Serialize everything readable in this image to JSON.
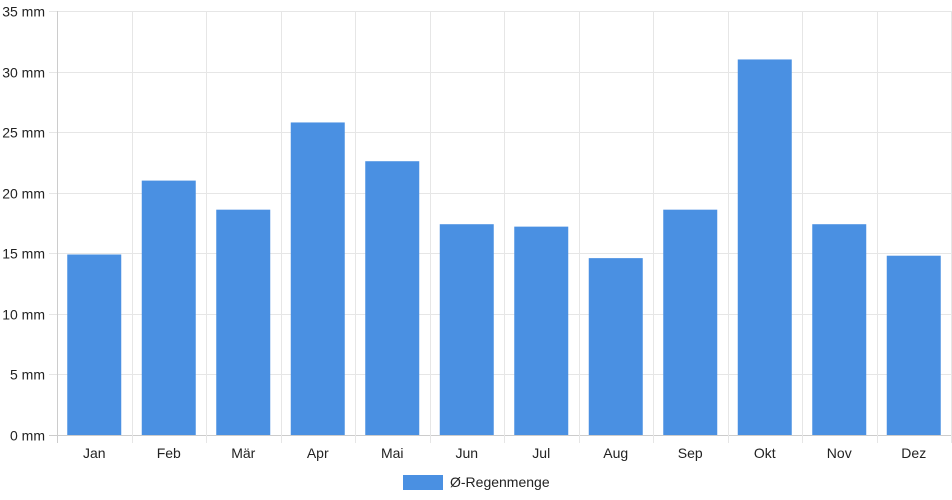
{
  "chart_data": {
    "type": "bar",
    "categories": [
      "Jan",
      "Feb",
      "Mär",
      "Apr",
      "Mai",
      "Jun",
      "Jul",
      "Aug",
      "Sep",
      "Okt",
      "Nov",
      "Dez"
    ],
    "series": [
      {
        "name": "Ø-Regenmenge",
        "color": "#4a90e2",
        "values": [
          14.9,
          21.0,
          18.6,
          25.8,
          22.6,
          17.4,
          17.2,
          14.6,
          18.6,
          31.0,
          17.4,
          14.8
        ]
      }
    ],
    "y_unit": "mm",
    "ylim": [
      0,
      35
    ],
    "yticks": [
      0,
      5,
      10,
      15,
      20,
      25,
      30,
      35
    ],
    "grid": true,
    "legend": "bottom-center"
  }
}
